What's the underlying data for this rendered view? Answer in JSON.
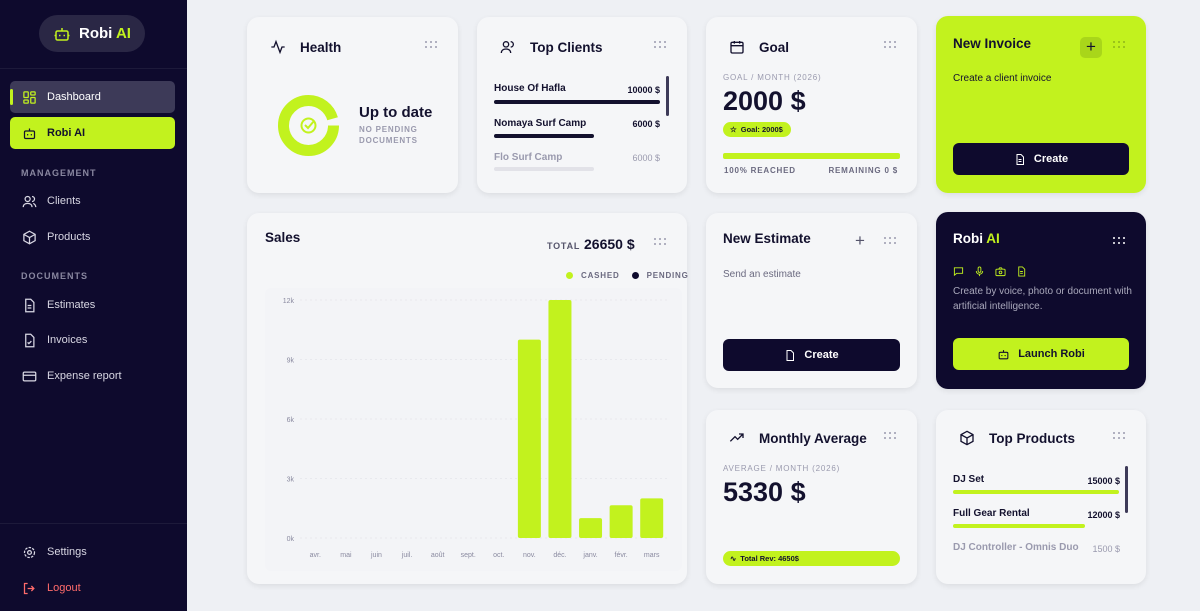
{
  "brand": {
    "name": "Robi",
    "suffix": "AI"
  },
  "sidebar": {
    "items": [
      {
        "label": "Dashboard",
        "icon": "dashboard-icon"
      },
      {
        "label": "Robi AI",
        "icon": "robot-icon"
      }
    ],
    "sections": [
      {
        "title": "MANAGEMENT",
        "items": [
          {
            "label": "Clients",
            "icon": "users-icon"
          },
          {
            "label": "Products",
            "icon": "box-icon"
          }
        ]
      },
      {
        "title": "DOCUMENTS",
        "items": [
          {
            "label": "Estimates",
            "icon": "file-text-icon"
          },
          {
            "label": "Invoices",
            "icon": "file-check-icon"
          },
          {
            "label": "Expense report",
            "icon": "credit-card-icon"
          }
        ]
      }
    ],
    "settings": "Settings",
    "logout": "Logout"
  },
  "health": {
    "title": "Health",
    "status": "Up to date",
    "sub1": "NO PENDING",
    "sub2": "DOCUMENTS",
    "progress": 0.95
  },
  "top_clients": {
    "title": "Top Clients",
    "rows": [
      {
        "name": "House Of Hafla",
        "value": "10000 $",
        "fraction": 1.0
      },
      {
        "name": "Nomaya Surf Camp",
        "value": "6000 $",
        "fraction": 0.6
      },
      {
        "name": "Flo Surf Camp",
        "value": "6000 $",
        "fraction": 0.6
      }
    ]
  },
  "goal": {
    "title": "Goal",
    "label": "GOAL / MONTH (2026)",
    "value": "2000 $",
    "badge": "Goal: 2000$",
    "progress": 1.0,
    "reached": "100% REACHED",
    "remaining": "REMAINING 0 $"
  },
  "new_invoice": {
    "title": "New Invoice",
    "desc": "Create a client invoice",
    "button": "Create"
  },
  "sales": {
    "title": "Sales",
    "total_label": "TOTAL",
    "total": "26650 $"
  },
  "new_estimate": {
    "title": "New Estimate",
    "desc": "Send an estimate",
    "button": "Create"
  },
  "robi_card": {
    "title": "Robi",
    "title_suffix": "AI",
    "desc": "Create by voice, photo or document with artificial intelligence.",
    "button": "Launch Robi"
  },
  "monthly_avg": {
    "title": "Monthly Average",
    "label": "AVERAGE / MONTH (2026)",
    "value": "5330 $",
    "badge": "Total Rev: 4650$"
  },
  "top_products": {
    "title": "Top Products",
    "rows": [
      {
        "name": "DJ Set",
        "value": "15000 $",
        "fraction": 1.0
      },
      {
        "name": "Full Gear Rental",
        "value": "12000 $",
        "fraction": 0.8
      },
      {
        "name": "DJ Controller - Omnis Duo",
        "value": "1500 $",
        "fraction": 0.1
      }
    ]
  },
  "colors": {
    "accent": "#c2f21e",
    "dark": "#0e0a2d"
  },
  "chart_data": {
    "type": "bar",
    "categories": [
      "avr.",
      "mai",
      "juin",
      "juil.",
      "août",
      "sept.",
      "oct.",
      "nov.",
      "déc.",
      "janv.",
      "févr.",
      "mars"
    ],
    "series": [
      {
        "name": "CASHED",
        "color": "#c2f21e",
        "values": [
          0,
          0,
          0,
          0,
          0,
          0,
          0,
          10000,
          12000,
          1000,
          1650,
          2000
        ]
      },
      {
        "name": "PENDING",
        "color": "#0e0a2d",
        "values": [
          0,
          0,
          0,
          0,
          0,
          0,
          0,
          0,
          0,
          0,
          0,
          0
        ]
      }
    ],
    "yticks": [
      "0k",
      "3k",
      "6k",
      "9k",
      "12k"
    ],
    "ylim": [
      0,
      12000
    ],
    "grid": true,
    "legend": "top-right"
  }
}
